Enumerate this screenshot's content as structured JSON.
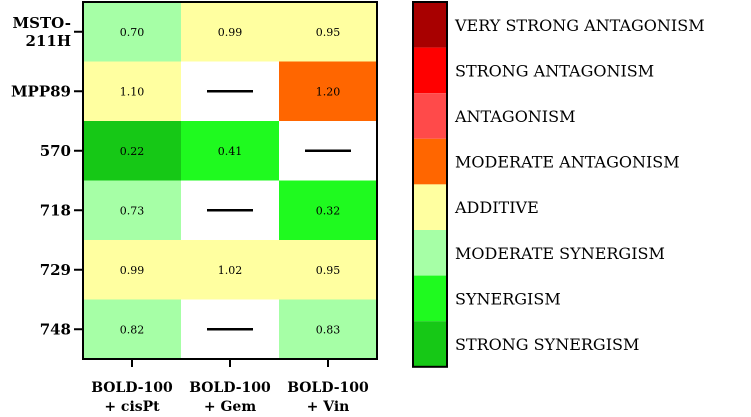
{
  "chart_data": {
    "type": "heatmap",
    "rows": [
      "MSTO-211H",
      "MPP89",
      "570",
      "718",
      "729",
      "748"
    ],
    "row_label_lines": [
      [
        "MSTO-",
        "211H"
      ],
      [
        "MPP89"
      ],
      [
        "570"
      ],
      [
        "718"
      ],
      [
        "729"
      ],
      [
        "748"
      ]
    ],
    "columns": [
      "BOLD-100 + cisPt",
      "BOLD-100 + Gem",
      "BOLD-100 + Vin"
    ],
    "column_label_lines": [
      [
        "BOLD-100",
        "+ cisPt"
      ],
      [
        "BOLD-100",
        "+ Gem"
      ],
      [
        "BOLD-100",
        "+ Vin"
      ]
    ],
    "values": [
      [
        "0.70",
        "0.99",
        "0.95"
      ],
      [
        "1.10",
        null,
        "1.20"
      ],
      [
        "0.22",
        "0.41",
        null
      ],
      [
        "0.73",
        null,
        "0.32"
      ],
      [
        "0.99",
        "1.02",
        "0.95"
      ],
      [
        "0.82",
        null,
        "0.83"
      ]
    ],
    "categories_per_cell": [
      [
        "MODERATE SYNERGISM",
        "ADDITIVE",
        "ADDITIVE"
      ],
      [
        "ADDITIVE",
        null,
        "MODERATE ANTAGONISM"
      ],
      [
        "STRONG SYNERGISM",
        "SYNERGISM",
        null
      ],
      [
        "MODERATE SYNERGISM",
        null,
        "SYNERGISM"
      ],
      [
        "ADDITIVE",
        "ADDITIVE",
        "ADDITIVE"
      ],
      [
        "MODERATE SYNERGISM",
        null,
        "MODERATE SYNERGISM"
      ]
    ],
    "legend": [
      {
        "label": "VERY STRONG ANTAGONISM",
        "color": "#a80000"
      },
      {
        "label": "STRONG ANTAGONISM",
        "color": "#ff0000"
      },
      {
        "label": "ANTAGONISM",
        "color": "#ff4a4a"
      },
      {
        "label": "MODERATE ANTAGONISM",
        "color": "#ff6600"
      },
      {
        "label": "ADDITIVE",
        "color": "#ffffa0"
      },
      {
        "label": "MODERATE SYNERGISM",
        "color": "#a6ffa6"
      },
      {
        "label": "SYNERGISM",
        "color": "#1ffa1f"
      },
      {
        "label": "STRONG SYNERGISM",
        "color": "#16c816"
      }
    ],
    "legend_placement": "right",
    "missing_color": "#ffffff"
  }
}
